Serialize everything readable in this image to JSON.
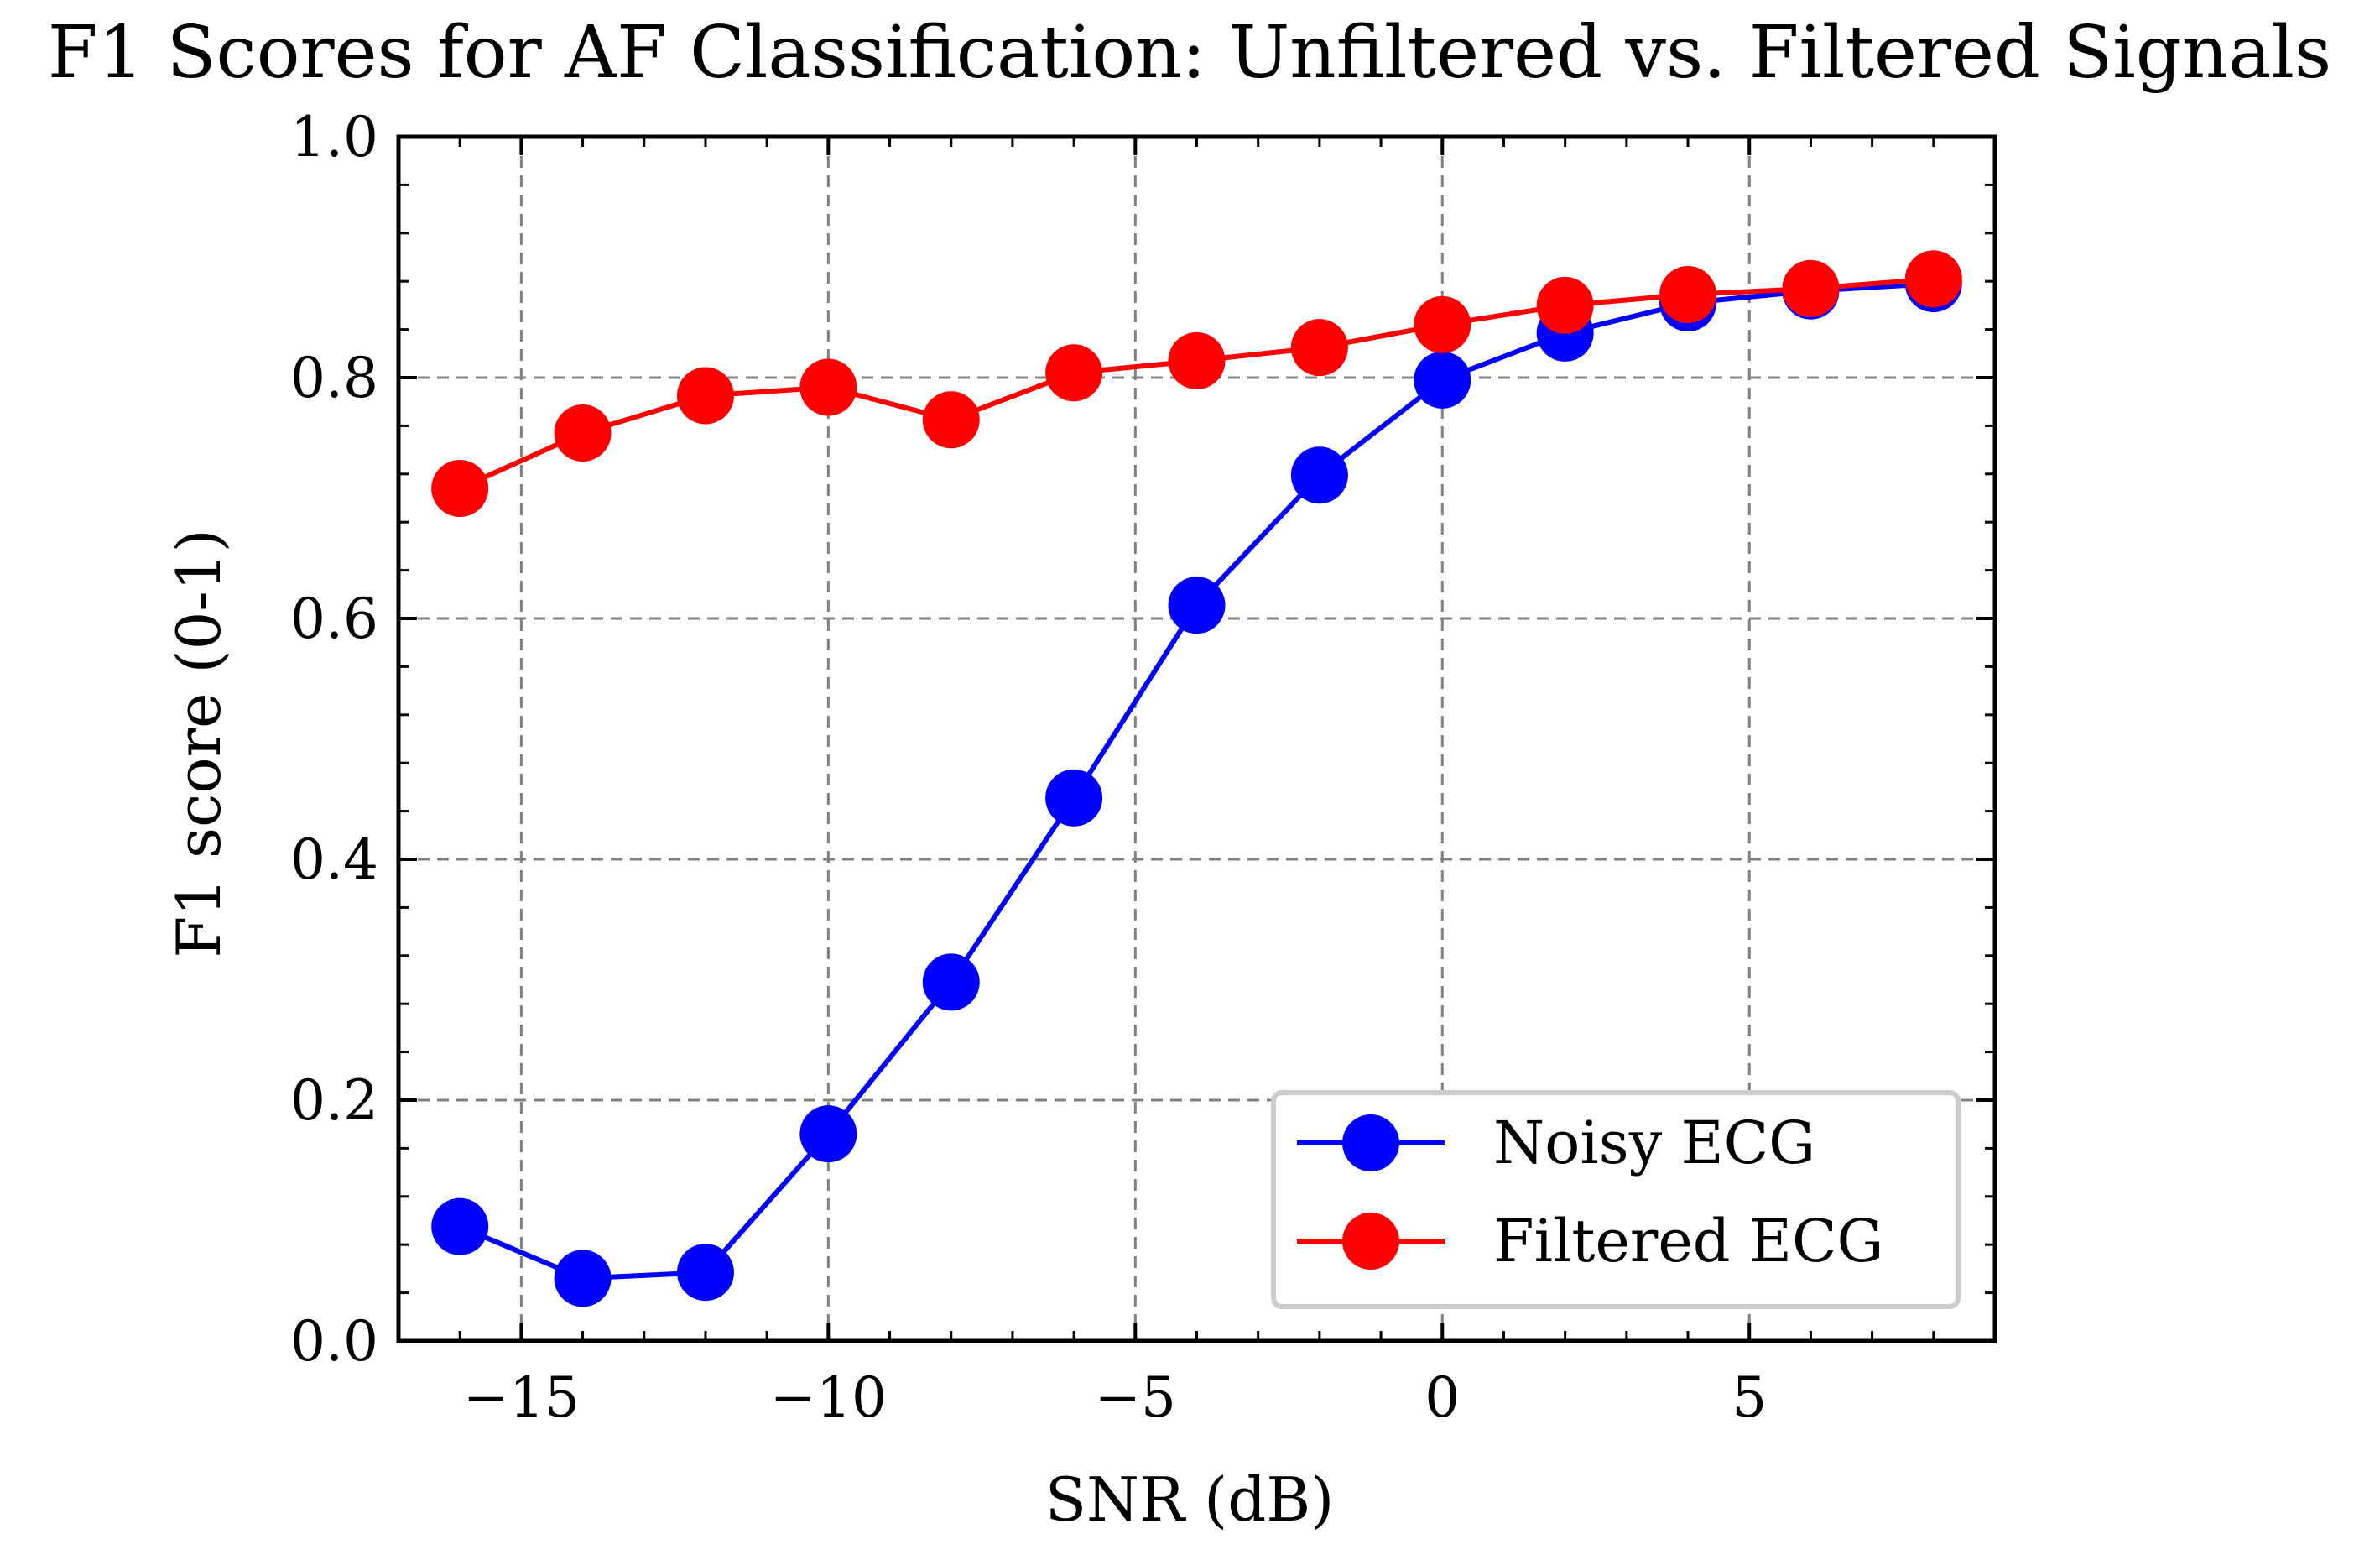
{
  "chart_data": {
    "type": "line",
    "title": "F1 Scores for AF Classification: Unfiltered vs. Filtered Signals",
    "xlabel": "SNR (dB)",
    "ylabel": "F1 score (0-1)",
    "xlim": [
      -17,
      9
    ],
    "ylim": [
      0.0,
      1.0
    ],
    "xticks": [
      -15,
      -10,
      -5,
      0,
      5
    ],
    "xtick_labels": [
      "−15",
      "−10",
      "−5",
      "0",
      "5"
    ],
    "yticks": [
      0.0,
      0.2,
      0.4,
      0.6,
      0.8,
      1.0
    ],
    "ytick_labels": [
      "0.0",
      "0.2",
      "0.4",
      "0.6",
      "0.8",
      "1.0"
    ],
    "grid": true,
    "legend_position": "lower-right",
    "x": [
      -16,
      -14,
      -12,
      -10,
      -8,
      -6,
      -4,
      -2,
      0,
      2,
      4,
      6,
      8
    ],
    "series": [
      {
        "name": "Noisy ECG",
        "color": "#0000ff",
        "marker": "circle",
        "values": [
          0.095,
          0.052,
          0.057,
          0.172,
          0.298,
          0.451,
          0.611,
          0.719,
          0.798,
          0.837,
          0.862,
          0.872,
          0.878
        ]
      },
      {
        "name": "Filtered ECG",
        "color": "#ff0000",
        "marker": "circle",
        "values": [
          0.708,
          0.754,
          0.785,
          0.792,
          0.765,
          0.804,
          0.814,
          0.825,
          0.844,
          0.86,
          0.869,
          0.874,
          0.882
        ]
      }
    ]
  }
}
